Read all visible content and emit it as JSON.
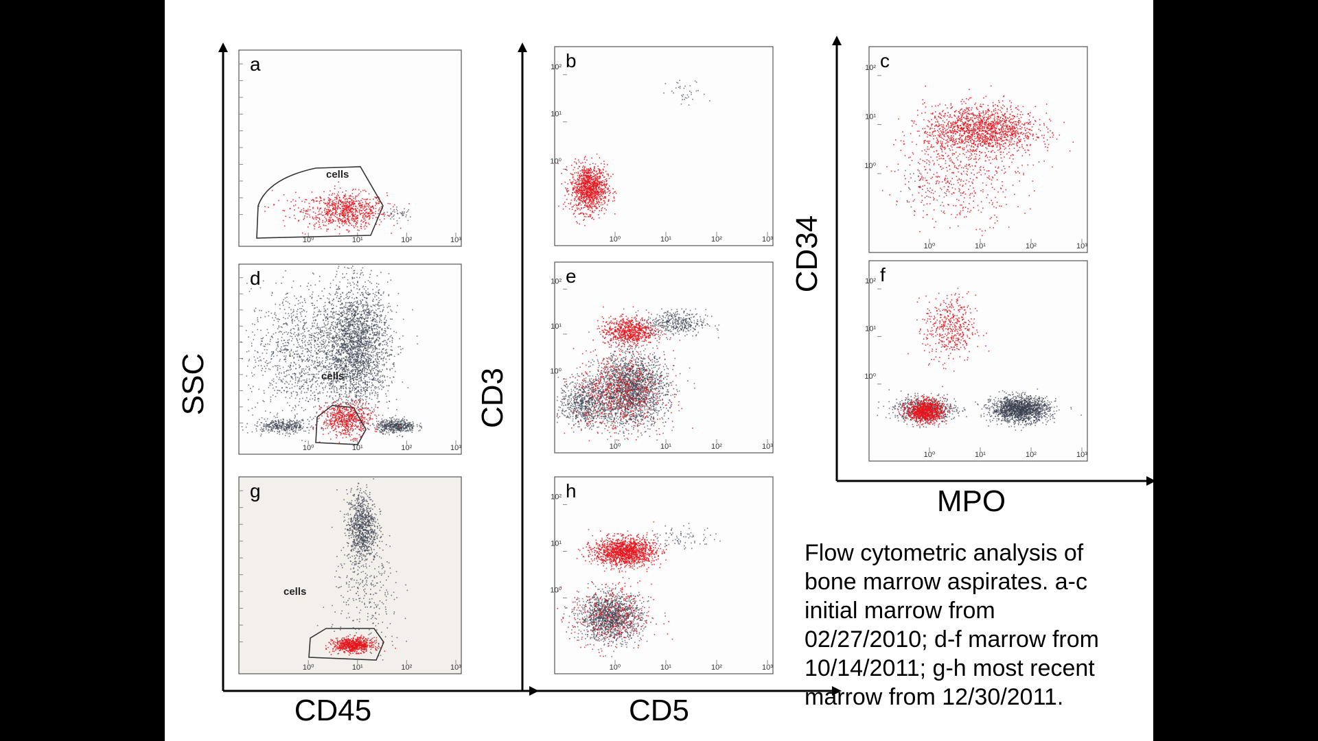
{
  "caption_lines": [
    "Flow cytometric analysis of",
    "bone marrow aspirates. a-c",
    "initial  marrow from",
    "02/27/2010; d-f marrow from",
    "10/14/2011; g-h most recent",
    "marrow from 12/30/2011."
  ],
  "colors": {
    "gated": "#e8141c",
    "ungated": "#3b4150",
    "frame": "#555555"
  },
  "chart_data": [
    {
      "type": "scatter",
      "panel": "a",
      "xlabel": "CD45",
      "ylabel": "SSC",
      "x_scale": "log",
      "x_ticks": [
        "10⁰",
        "10¹",
        "10²",
        "10³"
      ],
      "xlim": [
        0.05,
        1000
      ],
      "gate": {
        "label": "cells"
      },
      "populations": [
        {
          "color": "gated",
          "x_center": 6,
          "y_center": 0.12,
          "x_spread": 0.4,
          "y_spread": 0.05,
          "count": 700
        },
        {
          "color": "gated",
          "x_center": 1.5,
          "y_center": 0.12,
          "x_spread": 0.55,
          "y_spread": 0.06,
          "count": 120
        },
        {
          "color": "ungated",
          "x_center": 70,
          "y_center": 0.1,
          "x_spread": 0.15,
          "y_spread": 0.02,
          "count": 40
        }
      ]
    },
    {
      "type": "scatter",
      "panel": "b",
      "xlabel": "CD5",
      "ylabel": "CD3",
      "x_scale": "log",
      "y_scale": "log",
      "x_ticks": [
        "10⁰",
        "10¹",
        "10²",
        "10³"
      ],
      "y_ticks": [
        "10⁰",
        "10¹",
        "10²"
      ],
      "xlim": [
        0.1,
        1000
      ],
      "ylim": [
        0.05,
        300
      ],
      "populations": [
        {
          "color": "gated",
          "x_center": 0.3,
          "y_center": 0.4,
          "x_spread": 0.18,
          "y_spread": 0.25,
          "count": 1100
        },
        {
          "color": "ungated",
          "x_center": 25,
          "y_center": 40,
          "x_spread": 0.2,
          "y_spread": 0.15,
          "count": 35
        }
      ]
    },
    {
      "type": "scatter",
      "panel": "c",
      "xlabel": "MPO",
      "ylabel": "CD34",
      "x_scale": "log",
      "y_scale": "log",
      "x_ticks": [
        "10⁰",
        "10¹",
        "10²",
        "10³"
      ],
      "y_ticks": [
        "10⁰",
        "10¹",
        "10²"
      ],
      "xlim": [
        0.1,
        1000
      ],
      "ylim": [
        0.05,
        300
      ],
      "populations": [
        {
          "color": "gated",
          "x_center": 10,
          "y_center": 8,
          "x_spread": 0.55,
          "y_spread": 0.25,
          "count": 1500
        },
        {
          "color": "gated",
          "x_center": 4,
          "y_center": 1,
          "x_spread": 0.6,
          "y_spread": 0.5,
          "count": 500
        },
        {
          "color": "ungated",
          "x_center": 0.8,
          "y_center": 0.5,
          "x_spread": 0.3,
          "y_spread": 0.3,
          "count": 40
        }
      ]
    },
    {
      "type": "scatter",
      "panel": "d",
      "xlabel": "CD45",
      "ylabel": "SSC",
      "x_scale": "log",
      "x_ticks": [
        "10⁰",
        "10¹",
        "10²",
        "10³"
      ],
      "xlim": [
        0.05,
        1000
      ],
      "gate": {
        "label": "cells"
      },
      "populations": [
        {
          "color": "ungated",
          "x_center": 9,
          "y_center": 0.55,
          "x_spread": 0.35,
          "y_spread": 0.18,
          "count": 2600
        },
        {
          "color": "ungated",
          "x_center": 0.6,
          "y_center": 0.5,
          "x_spread": 0.5,
          "y_spread": 0.2,
          "count": 1000
        },
        {
          "color": "ungated",
          "x_center": 60,
          "y_center": 0.08,
          "x_spread": 0.2,
          "y_spread": 0.02,
          "count": 450
        },
        {
          "color": "ungated",
          "x_center": 0.3,
          "y_center": 0.08,
          "x_spread": 0.3,
          "y_spread": 0.02,
          "count": 350
        },
        {
          "color": "gated",
          "x_center": 6,
          "y_center": 0.12,
          "x_spread": 0.25,
          "y_spread": 0.05,
          "count": 600
        }
      ]
    },
    {
      "type": "scatter",
      "panel": "e",
      "xlabel": "CD5",
      "ylabel": "CD3",
      "x_scale": "log",
      "y_scale": "log",
      "x_ticks": [
        "10⁰",
        "10¹",
        "10²",
        "10³"
      ],
      "y_ticks": [
        "10⁰",
        "10¹",
        "10²"
      ],
      "xlim": [
        0.1,
        1000
      ],
      "ylim": [
        0.05,
        300
      ],
      "populations": [
        {
          "color": "ungated",
          "x_center": 2,
          "y_center": 0.6,
          "x_spread": 0.35,
          "y_spread": 0.4,
          "count": 2200
        },
        {
          "color": "ungated",
          "x_center": 0.25,
          "y_center": 0.3,
          "x_spread": 0.25,
          "y_spread": 0.25,
          "count": 700
        },
        {
          "color": "ungated",
          "x_center": 15,
          "y_center": 18,
          "x_spread": 0.3,
          "y_spread": 0.15,
          "count": 400
        },
        {
          "color": "gated",
          "x_center": 1.8,
          "y_center": 12,
          "x_spread": 0.25,
          "y_spread": 0.15,
          "count": 700
        },
        {
          "color": "gated",
          "x_center": 1.2,
          "y_center": 0.5,
          "x_spread": 0.45,
          "y_spread": 0.45,
          "count": 700
        }
      ]
    },
    {
      "type": "scatter",
      "panel": "f",
      "xlabel": "MPO",
      "ylabel": "CD34",
      "x_scale": "log",
      "y_scale": "log",
      "x_ticks": [
        "10⁰",
        "10¹",
        "10²",
        "10³"
      ],
      "y_ticks": [
        "10⁰",
        "10¹",
        "10²"
      ],
      "xlim": [
        0.1,
        1000
      ],
      "ylim": [
        0.05,
        300
      ],
      "populations": [
        {
          "color": "ungated",
          "x_center": 60,
          "y_center": 0.3,
          "x_spread": 0.28,
          "y_spread": 0.13,
          "count": 1700
        },
        {
          "color": "ungated",
          "x_center": 0.8,
          "y_center": 0.3,
          "x_spread": 0.3,
          "y_spread": 0.13,
          "count": 700
        },
        {
          "color": "gated",
          "x_center": 0.8,
          "y_center": 0.28,
          "x_spread": 0.18,
          "y_spread": 0.12,
          "count": 900
        },
        {
          "color": "gated",
          "x_center": 2.5,
          "y_center": 15,
          "x_spread": 0.25,
          "y_spread": 0.35,
          "count": 450
        }
      ]
    },
    {
      "type": "scatter",
      "panel": "g",
      "xlabel": "CD45",
      "ylabel": "SSC",
      "x_scale": "log",
      "x_ticks": [
        "10⁰",
        "10¹",
        "10²",
        "10³"
      ],
      "xlim": [
        0.05,
        1000
      ],
      "gate": {
        "label": "cells"
      },
      "populations": [
        {
          "color": "ungated",
          "x_center": 12,
          "y_center": 0.75,
          "x_spread": 0.15,
          "y_spread": 0.1,
          "count": 900
        },
        {
          "color": "ungated",
          "x_center": 15,
          "y_center": 0.35,
          "x_spread": 0.35,
          "y_spread": 0.18,
          "count": 300
        },
        {
          "color": "gated",
          "x_center": 8,
          "y_center": 0.08,
          "x_spread": 0.2,
          "y_spread": 0.02,
          "count": 700
        }
      ]
    },
    {
      "type": "scatter",
      "panel": "h",
      "xlabel": "CD5",
      "ylabel": "CD3",
      "x_scale": "log",
      "y_scale": "log",
      "x_ticks": [
        "10⁰",
        "10¹",
        "10²",
        "10³"
      ],
      "y_ticks": [
        "10⁰",
        "10¹",
        "10²"
      ],
      "xlim": [
        0.1,
        1000
      ],
      "ylim": [
        0.05,
        300
      ],
      "populations": [
        {
          "color": "gated",
          "x_center": 1.5,
          "y_center": 10,
          "x_spread": 0.3,
          "y_spread": 0.15,
          "count": 1400
        },
        {
          "color": "ungated",
          "x_center": 0.8,
          "y_center": 0.4,
          "x_spread": 0.3,
          "y_spread": 0.25,
          "count": 1400
        },
        {
          "color": "gated",
          "x_center": 0.8,
          "y_center": 0.4,
          "x_spread": 0.4,
          "y_spread": 0.35,
          "count": 400
        },
        {
          "color": "ungated",
          "x_center": 20,
          "y_center": 20,
          "x_spread": 0.35,
          "y_spread": 0.12,
          "count": 80
        }
      ]
    }
  ]
}
